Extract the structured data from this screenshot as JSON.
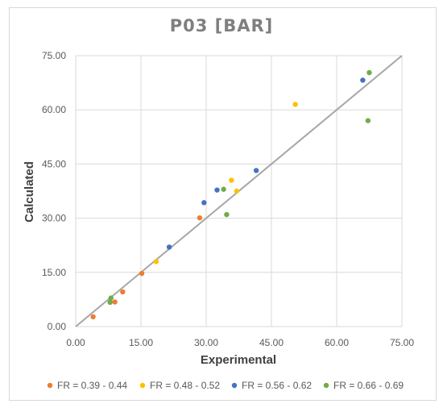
{
  "chart_data": {
    "type": "scatter",
    "title": "P03 [BAR]",
    "xlabel": "Experimental",
    "ylabel": "Calculated",
    "xlim": [
      0,
      75
    ],
    "ylim": [
      0,
      75
    ],
    "x_ticks": [
      "0.00",
      "15.00",
      "30.00",
      "45.00",
      "60.00",
      "75.00"
    ],
    "y_ticks": [
      "0.00",
      "15.00",
      "30.00",
      "45.00",
      "60.00",
      "75.00"
    ],
    "grid": true,
    "reference_line": {
      "from": [
        0,
        0
      ],
      "to": [
        75,
        75
      ],
      "color": "#a6a6a6"
    },
    "legend_position": "bottom",
    "series": [
      {
        "name": "FR = 0.39 - 0.44",
        "color": "#ED7D31",
        "points": [
          [
            4.0,
            2.7
          ],
          [
            9.0,
            6.8
          ],
          [
            10.8,
            9.6
          ],
          [
            15.2,
            14.7
          ],
          [
            28.5,
            30.1
          ]
        ]
      },
      {
        "name": "FR = 0.48 - 0.52",
        "color": "#FFC000",
        "points": [
          [
            18.5,
            18.0
          ],
          [
            35.8,
            40.5
          ],
          [
            37.0,
            37.5
          ],
          [
            50.5,
            61.5
          ]
        ]
      },
      {
        "name": "FR = 0.56 - 0.62",
        "color": "#4472C4",
        "points": [
          [
            21.5,
            22.0
          ],
          [
            29.5,
            34.3
          ],
          [
            32.5,
            37.8
          ],
          [
            41.5,
            43.2
          ],
          [
            66.0,
            68.2
          ]
        ]
      },
      {
        "name": "FR = 0.66 - 0.69",
        "color": "#70AD47",
        "points": [
          [
            7.9,
            6.7
          ],
          [
            8.1,
            7.9
          ],
          [
            34.0,
            38.0
          ],
          [
            34.7,
            31.0
          ],
          [
            67.2,
            57.0
          ],
          [
            67.5,
            70.3
          ]
        ]
      }
    ]
  }
}
